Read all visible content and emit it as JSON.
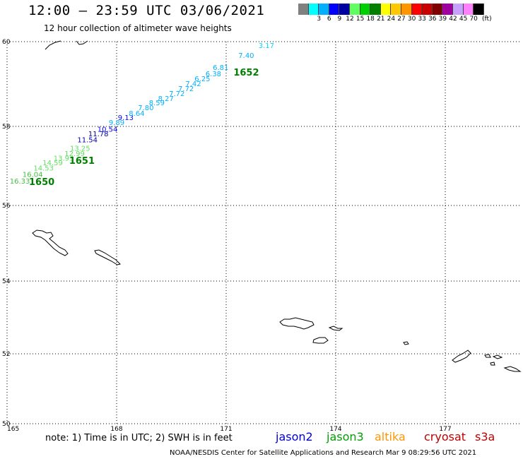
{
  "header": {
    "title": "12:00 – 23:59 UTC 03/06/2021",
    "subtitle": "12 hour collection of altimeter wave heights"
  },
  "legend": {
    "unit": "(ft)",
    "swatches": [
      {
        "color": "#808080",
        "label": ""
      },
      {
        "color": "#00ffff",
        "label": "3"
      },
      {
        "color": "#00b0ff",
        "label": "6"
      },
      {
        "color": "#0000ff",
        "label": "9"
      },
      {
        "color": "#0000a0",
        "label": "12"
      },
      {
        "color": "#60ff60",
        "label": "15"
      },
      {
        "color": "#00d000",
        "label": "18"
      },
      {
        "color": "#008000",
        "label": "21"
      },
      {
        "color": "#ffff00",
        "label": "24"
      },
      {
        "color": "#ffc800",
        "label": "27"
      },
      {
        "color": "#ff9600",
        "label": "30"
      },
      {
        "color": "#ff0000",
        "label": "33"
      },
      {
        "color": "#c80000",
        "label": "36"
      },
      {
        "color": "#800000",
        "label": "39"
      },
      {
        "color": "#a000a0",
        "label": "42"
      },
      {
        "color": "#c8a0ff",
        "label": "45"
      },
      {
        "color": "#ff80ff",
        "label": "70"
      },
      {
        "color": "#000000",
        "label": ""
      }
    ]
  },
  "map": {
    "lat_range": [
      50,
      60
    ],
    "lon_range": [
      165,
      179
    ],
    "lat_labels": [
      "60",
      "58",
      "56",
      "54",
      "52",
      "50"
    ],
    "lon_labels": [
      "165",
      "168",
      "171",
      "174",
      "177"
    ],
    "observations": [
      {
        "lat": 56.55,
        "lon": 165.35,
        "value": "16.33",
        "color": "#40c040"
      },
      {
        "lat": 56.72,
        "lon": 165.7,
        "value": "16.04",
        "color": "#40c040"
      },
      {
        "lat": 56.88,
        "lon": 166.0,
        "value": "14.53",
        "color": "#60e060"
      },
      {
        "lat": 57.02,
        "lon": 166.25,
        "value": "14.59",
        "color": "#60e060"
      },
      {
        "lat": 57.13,
        "lon": 166.55,
        "value": "13.93",
        "color": "#60e060"
      },
      {
        "lat": 57.25,
        "lon": 166.85,
        "value": "12.99",
        "color": "#60e060"
      },
      {
        "lat": 57.38,
        "lon": 167.0,
        "value": "13.25",
        "color": "#60e060"
      },
      {
        "lat": 57.6,
        "lon": 167.2,
        "value": "11.54",
        "color": "#0000a0"
      },
      {
        "lat": 57.75,
        "lon": 167.5,
        "value": "11.78",
        "color": "#0000a0"
      },
      {
        "lat": 57.87,
        "lon": 167.75,
        "value": "10.54",
        "color": "#0000ff"
      },
      {
        "lat": 58.03,
        "lon": 168.0,
        "value": "9.89",
        "color": "#00b0ff"
      },
      {
        "lat": 58.15,
        "lon": 168.25,
        "value": "9.13",
        "color": "#0000ff"
      },
      {
        "lat": 58.25,
        "lon": 168.55,
        "value": "8.64",
        "color": "#00b0ff"
      },
      {
        "lat": 58.38,
        "lon": 168.8,
        "value": "7.80",
        "color": "#00b0ff"
      },
      {
        "lat": 58.5,
        "lon": 169.1,
        "value": "8.59",
        "color": "#00b0ff"
      },
      {
        "lat": 58.6,
        "lon": 169.35,
        "value": "8.27",
        "color": "#00b0ff"
      },
      {
        "lat": 58.72,
        "lon": 169.65,
        "value": "7.72",
        "color": "#00b0ff"
      },
      {
        "lat": 58.83,
        "lon": 169.9,
        "value": "7.72",
        "color": "#00b0ff"
      },
      {
        "lat": 58.95,
        "lon": 170.1,
        "value": "7.42",
        "color": "#00b0ff"
      },
      {
        "lat": 59.07,
        "lon": 170.35,
        "value": "6.25",
        "color": "#00b0ff"
      },
      {
        "lat": 59.18,
        "lon": 170.65,
        "value": "6.38",
        "color": "#00b0ff"
      },
      {
        "lat": 59.33,
        "lon": 170.85,
        "value": "6.81",
        "color": "#00b0ff"
      },
      {
        "lat": 59.62,
        "lon": 171.55,
        "value": "7.40",
        "color": "#00b0ff"
      },
      {
        "lat": 59.85,
        "lon": 172.1,
        "value": "3.17",
        "color": "#00d8ff"
      }
    ],
    "passes": [
      {
        "lat": 56.52,
        "lon": 165.95,
        "label": "1650",
        "color": "#008000"
      },
      {
        "lat": 57.05,
        "lon": 167.05,
        "label": "1651",
        "color": "#008000"
      },
      {
        "lat": 59.2,
        "lon": 171.55,
        "label": "1652",
        "color": "#008000"
      }
    ]
  },
  "footer": {
    "note": "note: 1) Time is in UTC; 2) SWH is in feet",
    "satellites": [
      {
        "name": "jason2",
        "color": "#0000e0"
      },
      {
        "name": "jason3",
        "color": "#00a000"
      },
      {
        "name": "altika",
        "color": "#ff9600"
      },
      {
        "name": "cryosat",
        "color": "#c00000"
      },
      {
        "name": "s3a",
        "color": "#c00000"
      }
    ],
    "credit": "NOAA/NESDIS Center for Satellite Applications and Research    Mar  9 08:29:56 UTC 2021"
  }
}
